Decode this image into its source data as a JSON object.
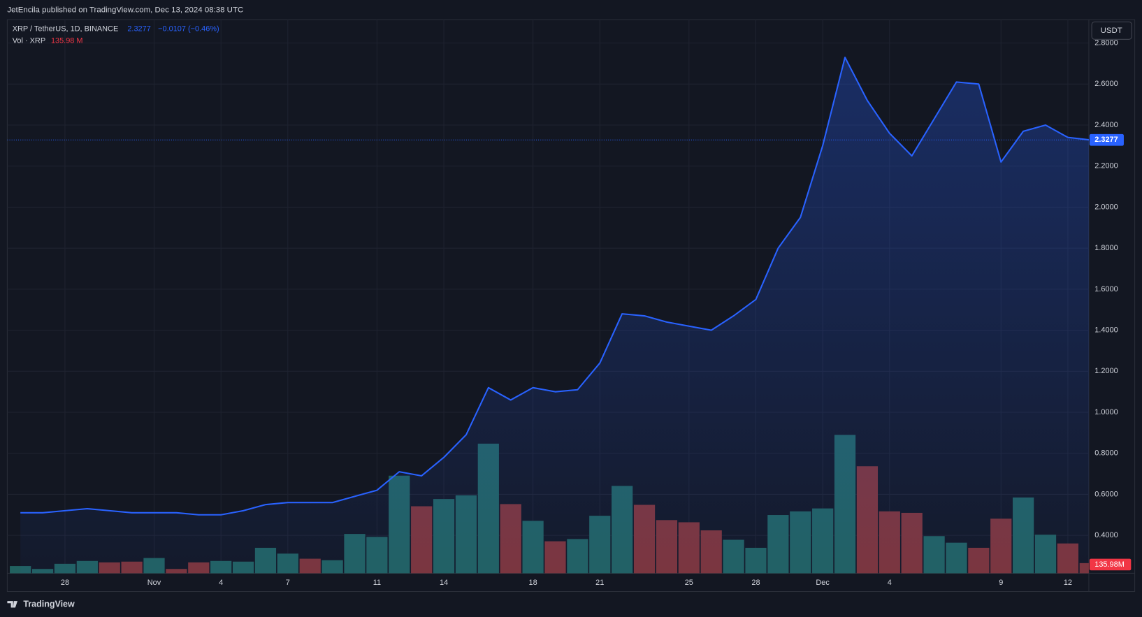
{
  "header": {
    "byline": "JetEncila published on TradingView.com, Dec 13, 2024 08:38 UTC",
    "brand": "TradingView",
    "currency": "USDT"
  },
  "chart_data": {
    "type": "line",
    "categories": [
      null,
      null,
      "28",
      null,
      null,
      null,
      "Nov",
      null,
      null,
      "4",
      null,
      null,
      "7",
      null,
      null,
      null,
      "11",
      null,
      null,
      "14",
      null,
      null,
      null,
      "18",
      null,
      null,
      "21",
      null,
      null,
      null,
      "25",
      null,
      null,
      "28",
      null,
      null,
      "Dec",
      null,
      null,
      "4",
      null,
      null,
      null,
      null,
      "9",
      null,
      null,
      "12",
      null
    ],
    "series": [
      {
        "name": "XRP / TetherUS, 1D, BINANCE",
        "color": "#2962ff",
        "change": "−0.0107 (−0.46%)",
        "values": [
          0.51,
          0.51,
          0.52,
          0.53,
          0.52,
          0.51,
          0.51,
          0.51,
          0.5,
          0.5,
          0.52,
          0.55,
          0.56,
          0.56,
          0.56,
          0.59,
          0.62,
          0.71,
          0.69,
          0.78,
          0.89,
          1.12,
          1.06,
          1.12,
          1.1,
          1.11,
          1.24,
          1.48,
          1.47,
          1.44,
          1.42,
          1.4,
          1.47,
          1.55,
          1.8,
          1.95,
          2.3,
          2.73,
          2.52,
          2.36,
          2.25,
          2.43,
          2.61,
          2.6,
          2.22,
          2.37,
          2.4,
          2.34,
          2.3277
        ]
      }
    ],
    "volume": {
      "name": "Vol · XRP",
      "unit": "M",
      "values": [
        97,
        58,
        127,
        165,
        146,
        156,
        204,
        58,
        146,
        165,
        156,
        341,
        263,
        195,
        175,
        526,
        487,
        1305,
        896,
        993,
        1042,
        1733,
        925,
        701,
        428,
        458,
        769,
        1168,
        915,
        711,
        682,
        574,
        448,
        341,
        779,
        828,
        867,
        1850,
        1431,
        828,
        808,
        497,
        409,
        341,
        730,
        1013,
        516,
        399,
        135.98
      ],
      "last_label_legend": "135.98 M",
      "last_label_axis": "135.98M",
      "colors": [
        "#22615f",
        "#22615f",
        "#22615f",
        "#22615f",
        "#7e3438",
        "#7e3438",
        "#22615f",
        "#7e3438",
        "#7e3438",
        "#22615f",
        "#22615f",
        "#22615f",
        "#22615f",
        "#7e3438",
        "#22615f",
        "#22615f",
        "#22615f",
        "#22615f",
        "#7e3438",
        "#22615f",
        "#22615f",
        "#22615f",
        "#7e3438",
        "#22615f",
        "#7e3438",
        "#22615f",
        "#22615f",
        "#22615f",
        "#7e3438",
        "#7e3438",
        "#7e3438",
        "#7e3438",
        "#22615f",
        "#22615f",
        "#22615f",
        "#22615f",
        "#22615f",
        "#22615f",
        "#7e3438",
        "#7e3438",
        "#7e3438",
        "#22615f",
        "#22615f",
        "#7e3438",
        "#7e3438",
        "#22615f",
        "#22615f",
        "#7e3438",
        "#7e3438"
      ],
      "ylim": [
        0,
        7400
      ]
    },
    "ylim": [
      0.215,
      2.914
    ],
    "yticks": [
      {
        "value": 0.4,
        "label": "0.4000"
      },
      {
        "value": 0.6,
        "label": "0.6000"
      },
      {
        "value": 0.8,
        "label": "0.8000"
      },
      {
        "value": 1.0,
        "label": "1.0000"
      },
      {
        "value": 1.2,
        "label": "1.2000"
      },
      {
        "value": 1.4,
        "label": "1.4000"
      },
      {
        "value": 1.6,
        "label": "1.6000"
      },
      {
        "value": 1.8,
        "label": "1.8000"
      },
      {
        "value": 2.0,
        "label": "2.0000"
      },
      {
        "value": 2.2,
        "label": "2.2000"
      },
      {
        "value": 2.4,
        "label": "2.4000"
      },
      {
        "value": 2.6,
        "label": "2.6000"
      },
      {
        "value": 2.8,
        "label": "2.8000"
      }
    ],
    "grid": true
  }
}
